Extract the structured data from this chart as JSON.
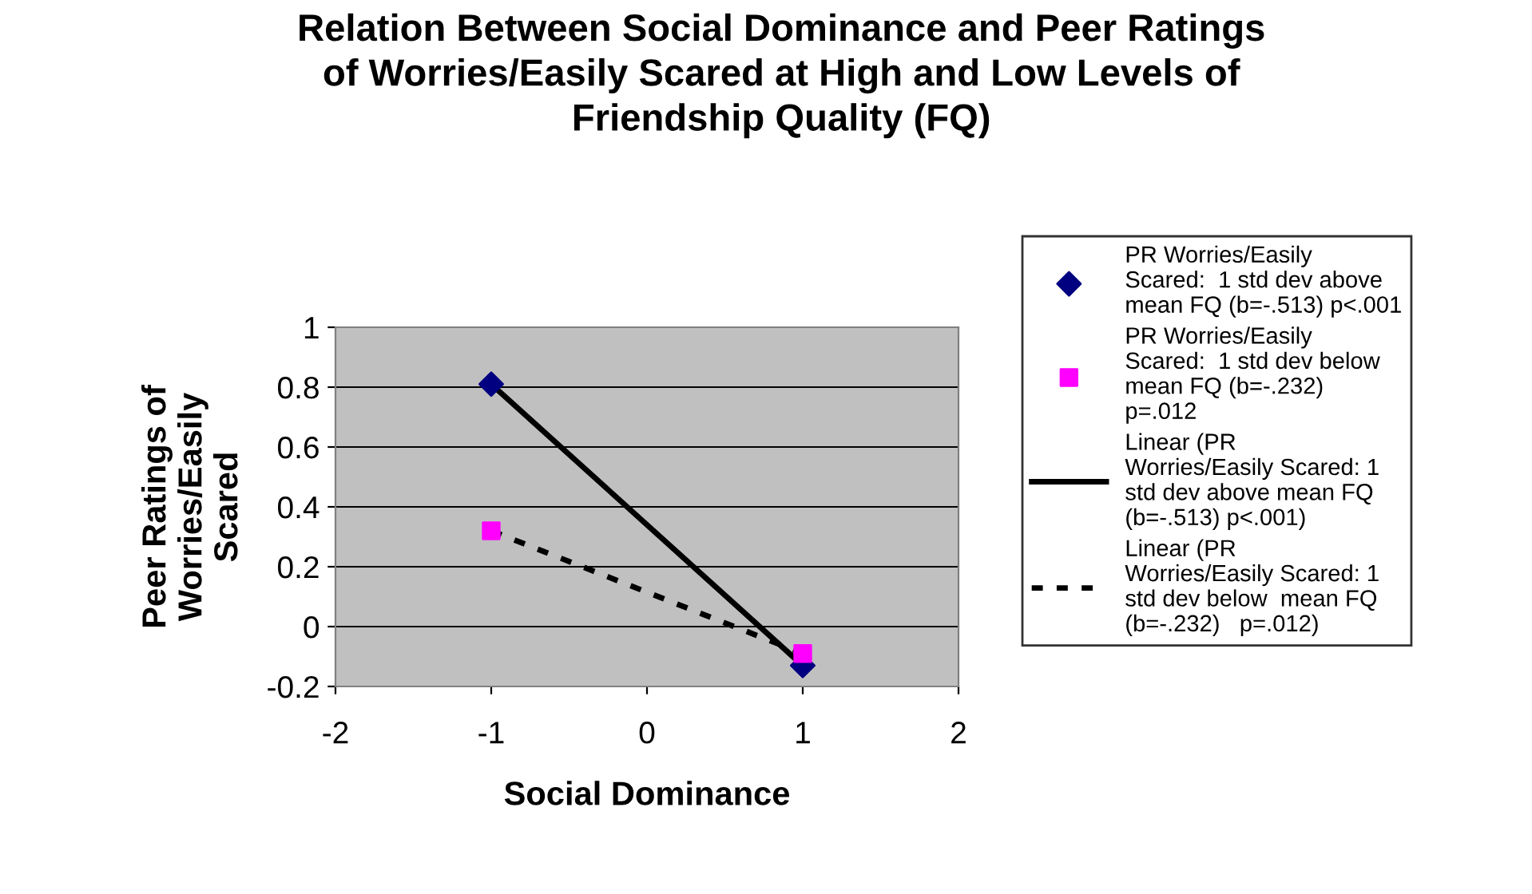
{
  "chart_data": {
    "type": "scatter",
    "title": "Relation Between Social Dominance and Peer Ratings of Worries/Easily Scared at High and Low Levels of Friendship Quality (FQ)",
    "xlabel": "Social Dominance",
    "ylabel": "Peer Ratings of Worries/Easily Scared",
    "x": [
      -1,
      1
    ],
    "xlim": [
      -2,
      2
    ],
    "xticks": [
      -2,
      -1,
      0,
      1,
      2
    ],
    "ylim": [
      -0.2,
      1
    ],
    "yticks": [
      -0.2,
      0,
      0.2,
      0.4,
      0.6,
      0.8,
      1
    ],
    "grid": "y",
    "legend": "right",
    "series": [
      {
        "name": "PR Worries/Easily Scared:  1 std dev above mean FQ (b=-.513) p<.001",
        "marker": "diamond",
        "color": "#000080",
        "values": [
          0.81,
          -0.13
        ]
      },
      {
        "name": "PR Worries/Easily Scared:  1 std dev below  mean FQ (b=-.232)   p=.012",
        "marker": "square",
        "color": "#ff00ff",
        "values": [
          0.32,
          -0.09
        ]
      },
      {
        "name": "Linear (PR Worries/Easily Scared: 1 std dev above mean FQ (b=-.513) p<.001)",
        "type": "line",
        "line_style": "solid",
        "color": "#000000",
        "values": [
          0.81,
          -0.13
        ]
      },
      {
        "name": "Linear (PR Worries/Easily Scared: 1 std dev below  mean FQ (b=-.232)   p=.012)",
        "type": "line",
        "line_style": "dashed",
        "color": "#000000",
        "values": [
          0.32,
          -0.09
        ]
      }
    ]
  }
}
